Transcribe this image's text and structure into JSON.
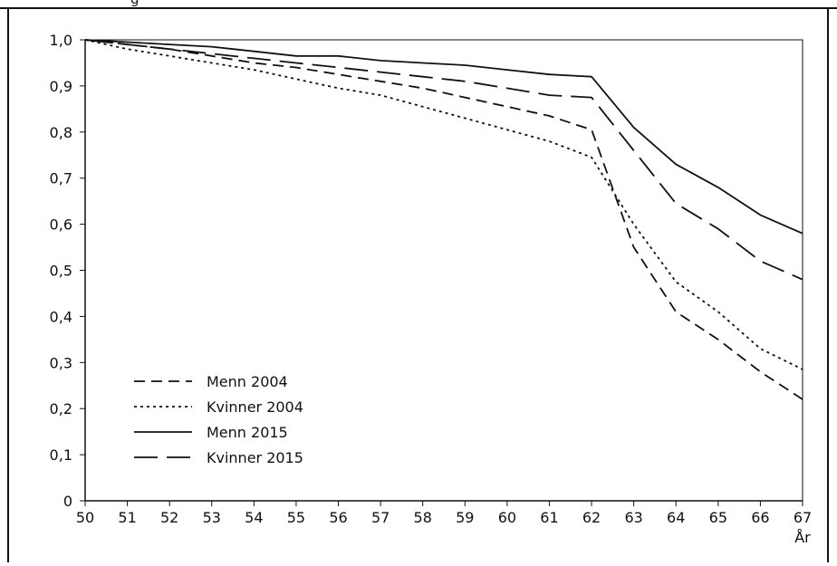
{
  "header_fragment": "g",
  "chart_data": {
    "type": "line",
    "title": "",
    "xlabel": "År",
    "ylabel": "",
    "xlim": [
      50,
      67
    ],
    "ylim": [
      0,
      1.0
    ],
    "grid": false,
    "legend_placement": "bottom-left",
    "x": [
      50,
      51,
      52,
      53,
      54,
      55,
      56,
      57,
      58,
      59,
      60,
      61,
      62,
      63,
      64,
      65,
      66,
      67
    ],
    "x_tick_labels": [
      "50",
      "51",
      "52",
      "53",
      "54",
      "55",
      "56",
      "57",
      "58",
      "59",
      "60",
      "61",
      "62",
      "63",
      "64",
      "65",
      "66",
      "67"
    ],
    "y_ticks": [
      0,
      0.1,
      0.2,
      0.3,
      0.4,
      0.5,
      0.6,
      0.7,
      0.8,
      0.9,
      1.0
    ],
    "y_tick_labels": [
      "0",
      "0,1",
      "0,2",
      "0,3",
      "0,4",
      "0,5",
      "0,6",
      "0,7",
      "0,8",
      "0,9",
      "1,0"
    ],
    "series": [
      {
        "name": "Menn 2004",
        "dash": "dashed",
        "values": [
          1.0,
          0.99,
          0.98,
          0.965,
          0.95,
          0.94,
          0.925,
          0.91,
          0.895,
          0.875,
          0.855,
          0.835,
          0.805,
          0.55,
          0.41,
          0.35,
          0.28,
          0.22
        ]
      },
      {
        "name": "Kvinner 2004",
        "dash": "dotted",
        "values": [
          1.0,
          0.98,
          0.965,
          0.95,
          0.935,
          0.915,
          0.895,
          0.88,
          0.855,
          0.83,
          0.805,
          0.78,
          0.745,
          0.6,
          0.475,
          0.41,
          0.33,
          0.285
        ]
      },
      {
        "name": "Menn 2015",
        "dash": "solid",
        "values": [
          1.0,
          0.995,
          0.99,
          0.985,
          0.975,
          0.965,
          0.965,
          0.955,
          0.95,
          0.945,
          0.935,
          0.925,
          0.92,
          0.81,
          0.73,
          0.68,
          0.62,
          0.58
        ]
      },
      {
        "name": "Kvinner 2015",
        "dash": "longdash",
        "values": [
          1.0,
          0.99,
          0.98,
          0.97,
          0.96,
          0.95,
          0.94,
          0.93,
          0.92,
          0.91,
          0.895,
          0.88,
          0.875,
          0.76,
          0.645,
          0.59,
          0.52,
          0.48
        ]
      }
    ]
  }
}
